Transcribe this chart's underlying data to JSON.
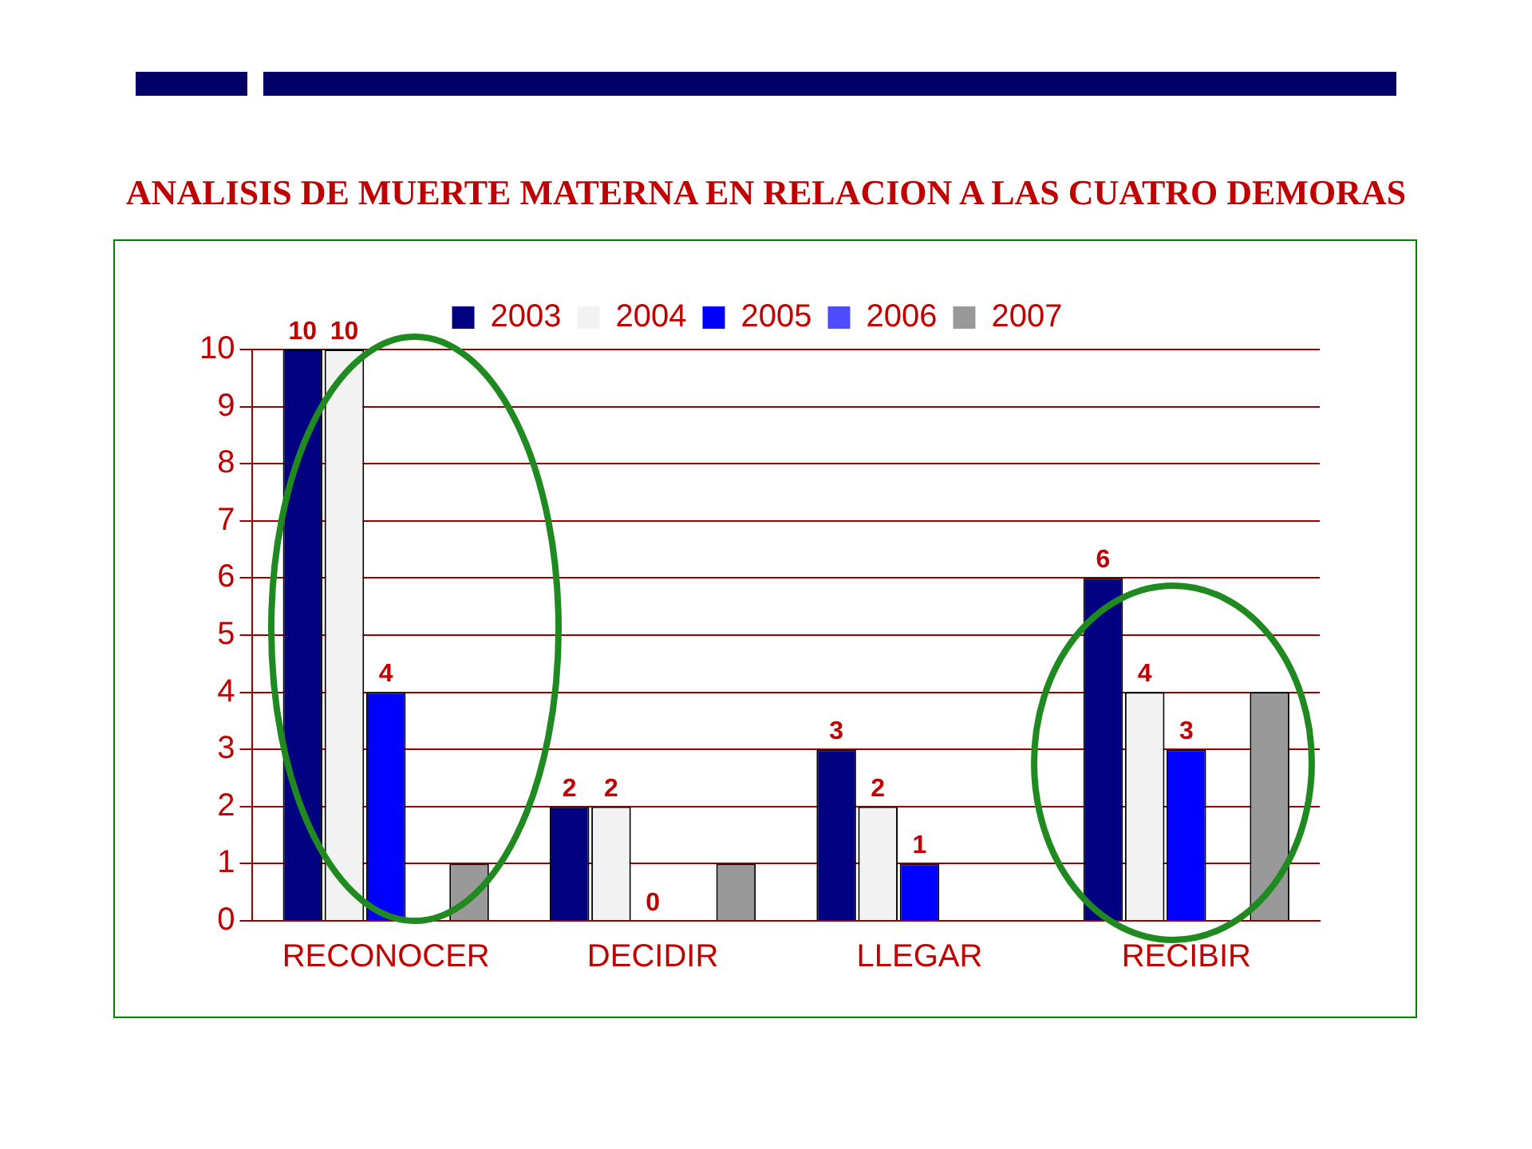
{
  "chart_data": {
    "type": "bar",
    "title": "ANALISIS DE MUERTE MATERNA EN RELACION A LAS CUATRO DEMORAS",
    "categories": [
      "RECONOCER",
      "DECIDIR",
      "LLEGAR",
      "RECIBIR"
    ],
    "series": [
      {
        "name": "2003",
        "color": "#000080",
        "values": [
          10,
          2,
          3,
          6
        ],
        "value_labels": [
          "10",
          "2",
          "3",
          "6"
        ]
      },
      {
        "name": "2004",
        "color": "#f2f2f2",
        "values": [
          10,
          2,
          2,
          4
        ],
        "value_labels": [
          "10",
          "2",
          "2",
          "4"
        ]
      },
      {
        "name": "2005",
        "color": "#0000ff",
        "values": [
          4,
          0,
          1,
          3
        ],
        "value_labels": [
          "4",
          "0",
          "1",
          "3"
        ]
      },
      {
        "name": "2006",
        "color": "#4d4dff",
        "values": [
          0,
          0,
          0,
          0
        ]
      },
      {
        "name": "2007",
        "color": "#999999",
        "values": [
          1,
          1,
          0,
          4
        ]
      }
    ],
    "ylim": [
      0,
      10
    ],
    "yticks": [
      0,
      1,
      2,
      3,
      4,
      5,
      6,
      7,
      8,
      9,
      10
    ],
    "grid": "y",
    "legend": "top"
  }
}
